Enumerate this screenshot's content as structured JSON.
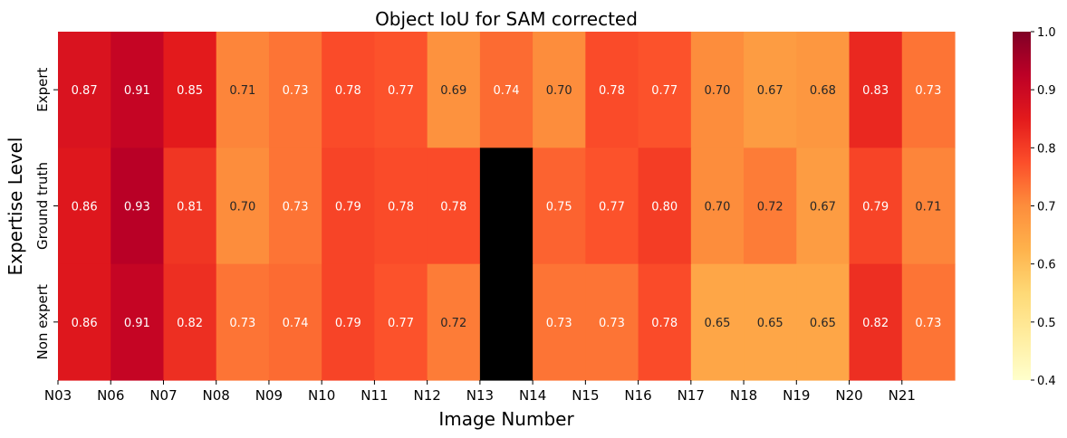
{
  "chart_data": {
    "type": "heatmap",
    "title": "Object IoU for SAM corrected",
    "xlabel": "Image Number",
    "ylabel": "Expertise Level",
    "x_tick_labels": [
      "N03",
      "N06",
      "N07",
      "N08",
      "N09",
      "N10",
      "N11",
      "N12",
      "N13",
      "N14",
      "N15",
      "N16",
      "N17",
      "N18",
      "N19",
      "N20",
      "N21"
    ],
    "y_tick_labels": [
      "Expert",
      "Ground truth",
      "Non expert"
    ],
    "cell_values": [
      [
        0.87,
        0.91,
        0.85,
        0.71,
        0.73,
        0.78,
        0.77,
        0.69,
        0.74,
        0.7,
        0.78,
        0.77,
        0.7,
        0.67,
        0.68,
        0.83,
        0.73
      ],
      [
        0.86,
        0.93,
        0.81,
        0.7,
        0.73,
        0.79,
        0.78,
        0.78,
        null,
        0.75,
        0.77,
        0.8,
        0.7,
        0.72,
        0.67,
        0.79,
        0.71
      ],
      [
        0.86,
        0.91,
        0.82,
        0.73,
        0.74,
        0.79,
        0.77,
        0.72,
        null,
        0.73,
        0.73,
        0.78,
        0.65,
        0.65,
        0.65,
        0.82,
        0.73
      ]
    ],
    "missing_cell_color": "#000000",
    "colormap": "YlOrRd",
    "colorbar_range": [
      0.4,
      1.0
    ],
    "colorbar_ticks": [
      "0.4",
      "0.5",
      "0.6",
      "0.7",
      "0.8",
      "0.9",
      "1.0"
    ],
    "legend": "colorbar-right",
    "grid": false
  }
}
